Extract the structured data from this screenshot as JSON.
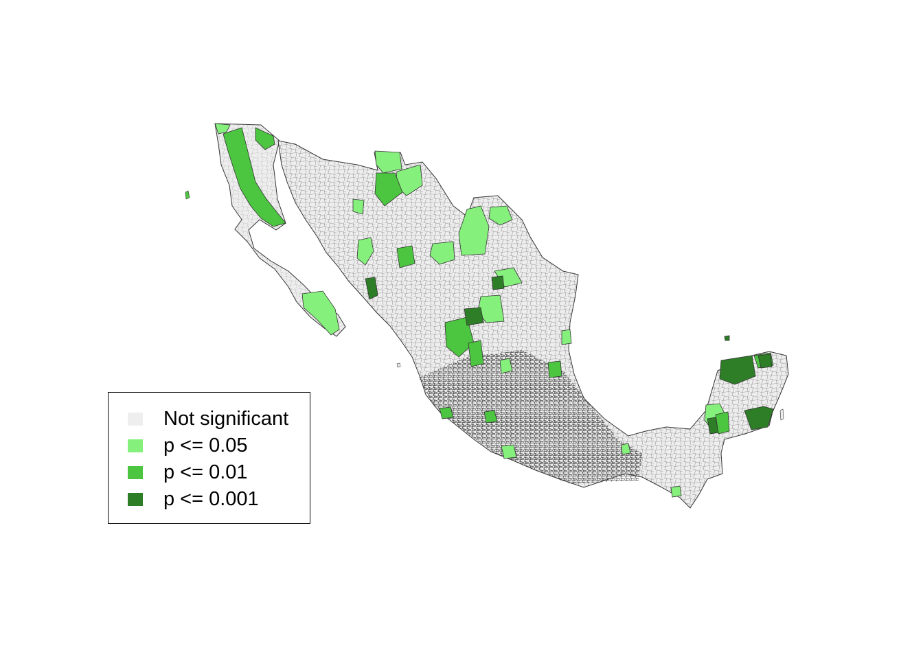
{
  "map": {
    "region": "Mexico municipalities",
    "boundary_color": "#333333",
    "colors": {
      "not_significant": "#eeeeee",
      "p05": "#86f07d",
      "p01": "#4cc540",
      "p001": "#2e7d27"
    }
  },
  "legend": {
    "items": [
      {
        "label": "Not significant",
        "color": "#eeeeee"
      },
      {
        "label": "p <= 0.05",
        "color": "#86f07d"
      },
      {
        "label": "p <= 0.01",
        "color": "#4cc540"
      },
      {
        "label": "p <= 0.001",
        "color": "#2e7d27"
      }
    ]
  }
}
